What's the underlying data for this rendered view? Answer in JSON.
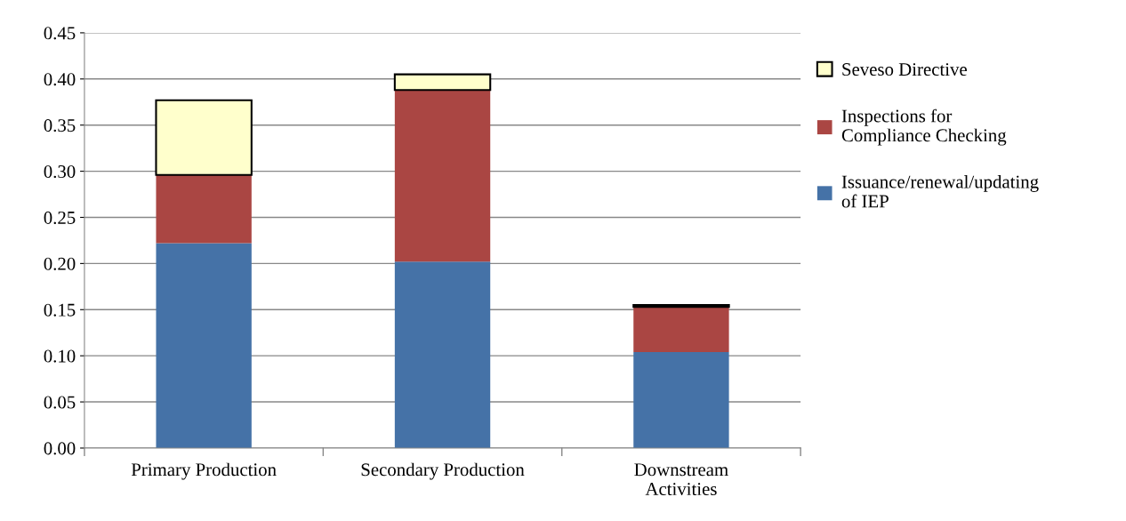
{
  "chart_data": {
    "type": "bar",
    "stacked": true,
    "categories": [
      "Primary Production",
      "Secondary Production",
      "Downstream\nActivities"
    ],
    "series": [
      {
        "name": "Issuance/renewal/updating\nof IEP",
        "color": "#4572a7",
        "values": [
          0.222,
          0.202,
          0.104
        ]
      },
      {
        "name": "Inspections for\nCompliance Checking",
        "color": "#aa4643",
        "values": [
          0.074,
          0.186,
          0.049
        ]
      },
      {
        "name": "Seveso Directive",
        "color": "#ffffcc",
        "values": [
          0.081,
          0.017,
          0.002
        ]
      }
    ],
    "ylim": [
      0,
      0.45
    ],
    "yticks": [
      {
        "value": 0,
        "label": "0.00"
      },
      {
        "value": 0.05,
        "label": "0.05"
      },
      {
        "value": 0.1,
        "label": "0.10"
      },
      {
        "value": 0.15,
        "label": "0.15"
      },
      {
        "value": 0.2,
        "label": "0.20"
      },
      {
        "value": 0.25,
        "label": "0.25"
      },
      {
        "value": 0.3,
        "label": "0.30"
      },
      {
        "value": 0.35,
        "label": "0.35"
      },
      {
        "value": 0.4,
        "label": "0.40"
      },
      {
        "value": 0.45,
        "label": "0.45"
      }
    ],
    "grid": "y",
    "legend": "right"
  }
}
